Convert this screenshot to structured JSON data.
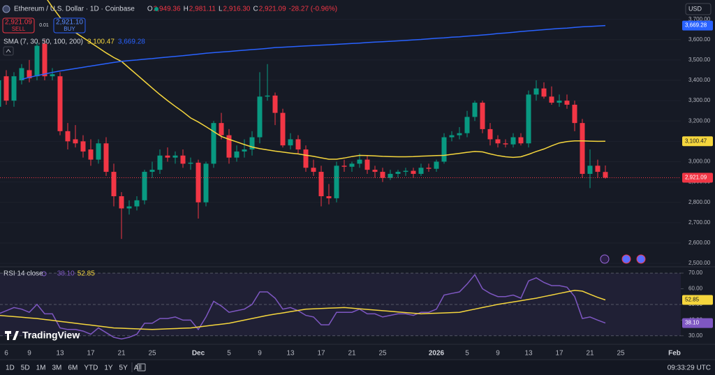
{
  "header": {
    "symbol": "Ethereum / U.S. Dollar · 1D · Coinbase",
    "ohlc": [
      {
        "key": "O",
        "value": "2,949.36"
      },
      {
        "key": "H",
        "value": "2,981.11"
      },
      {
        "key": "L",
        "value": "2,916.30"
      },
      {
        "key": "C",
        "value": "2,921.09"
      }
    ],
    "change": "-28.27 (-0.96%)"
  },
  "trade": {
    "sell_price": "2,921.09",
    "sell": "SELL",
    "spread": "0.01",
    "buy_price": "2,921.10",
    "buy": "BUY"
  },
  "currency": "USD",
  "logo": "TradingView",
  "toolbar": {
    "ranges": [
      "1D",
      "5D",
      "1M",
      "3M",
      "6M",
      "YTD",
      "1Y",
      "5Y",
      "All"
    ],
    "clock": "09:33:29 UTC"
  },
  "chart_data": [
    {
      "type": "candlestick",
      "categories": [
        null,
        "6",
        null,
        null,
        "9",
        null,
        null,
        null,
        "13",
        null,
        null,
        null,
        "17",
        null,
        null,
        null,
        "21",
        null,
        null,
        null,
        "25",
        null,
        null,
        null,
        null,
        null,
        "Dec",
        null,
        null,
        null,
        "5",
        null,
        null,
        null,
        "9",
        null,
        null,
        null,
        "13",
        null,
        null,
        null,
        "17",
        null,
        null,
        null,
        "21",
        null,
        null,
        null,
        "25",
        null,
        null,
        null,
        null,
        null,
        null,
        "2026",
        null,
        null,
        null,
        "5",
        null,
        null,
        null,
        "9",
        null,
        null,
        null,
        "13",
        null,
        null,
        null,
        "17",
        null,
        null,
        null,
        "21",
        null,
        null,
        null,
        "25",
        null,
        null,
        null,
        null,
        null,
        null,
        "Feb"
      ],
      "open": [
        3270,
        3420,
        3300,
        3400,
        3450,
        3420,
        3580,
        3420,
        3420,
        3150,
        3110,
        3100,
        3060,
        3010,
        3090,
        2950,
        2830,
        2770,
        2780,
        2810,
        2950,
        2960,
        3030,
        3020,
        3030,
        2990,
        2995,
        2800,
        2990,
        3190,
        3130,
        3020,
        3050,
        3060,
        3120,
        3320,
        3325,
        3240,
        3080,
        3110,
        3060,
        2970,
        2950,
        2830,
        2820,
        2980,
        2975,
        2990,
        3010,
        2960,
        2950,
        2920,
        2940,
        2950,
        2955,
        2940,
        2970,
        2965,
        3000,
        3120,
        3130,
        3140,
        3220,
        3290,
        3160,
        3110,
        3090,
        3085,
        3120,
        3090,
        3330,
        3360,
        3320,
        3290,
        3300,
        3280,
        3190,
        2940,
        2980,
        2949.36,
        null,
        null,
        null,
        null,
        null,
        null,
        null,
        null,
        null
      ],
      "high": [
        3420,
        3450,
        3440,
        3480,
        3500,
        3590,
        3600,
        3460,
        3440,
        3190,
        3180,
        3130,
        3110,
        3110,
        3120,
        2990,
        2850,
        2810,
        2830,
        2960,
        3000,
        3060,
        3070,
        3050,
        3060,
        3020,
        3010,
        3000,
        3200,
        3240,
        3160,
        3080,
        3110,
        3150,
        3440,
        3480,
        3340,
        3260,
        3140,
        3130,
        3080,
        3010,
        2980,
        2890,
        3000,
        3010,
        3000,
        3040,
        3030,
        2980,
        2970,
        2960,
        2960,
        2970,
        2970,
        2990,
        2990,
        3010,
        3140,
        3150,
        3170,
        3250,
        3300,
        3300,
        3190,
        3130,
        3110,
        3140,
        3140,
        3350,
        3400,
        3390,
        3370,
        3330,
        3330,
        3300,
        3210,
        3060,
        3010,
        2981.11,
        null,
        null,
        null,
        null,
        null,
        null,
        null,
        null,
        null
      ],
      "low": [
        3240,
        3280,
        3270,
        3380,
        3390,
        3400,
        3400,
        3400,
        3130,
        3060,
        3070,
        3020,
        2980,
        2990,
        2930,
        2780,
        2620,
        2740,
        2760,
        2790,
        2920,
        2940,
        3000,
        2990,
        2970,
        2960,
        2720,
        2780,
        2970,
        3110,
        2990,
        3000,
        3020,
        3030,
        3090,
        3300,
        3180,
        3070,
        3060,
        3040,
        2950,
        2930,
        2780,
        2790,
        2800,
        2950,
        2950,
        2970,
        2940,
        2920,
        2900,
        2910,
        2920,
        2930,
        2920,
        2930,
        2950,
        2950,
        2990,
        3100,
        3110,
        3120,
        3200,
        3140,
        3080,
        3070,
        3070,
        3070,
        3080,
        3070,
        3300,
        3310,
        3280,
        3270,
        3260,
        3150,
        2920,
        2870,
        2920,
        2916.3,
        null,
        null,
        null,
        null,
        null,
        null,
        null,
        null,
        null
      ],
      "close": [
        3400,
        3300,
        3420,
        3460,
        3410,
        3570,
        3420,
        3430,
        3150,
        3100,
        3090,
        3050,
        3010,
        3090,
        2950,
        2830,
        2770,
        2780,
        2810,
        2950,
        2960,
        3030,
        3020,
        3030,
        2990,
        2995,
        2800,
        2990,
        3190,
        3130,
        3020,
        3050,
        3060,
        3120,
        3320,
        3325,
        3240,
        3080,
        3110,
        3060,
        2970,
        2950,
        2830,
        2820,
        2980,
        2975,
        2990,
        3010,
        2960,
        2950,
        2920,
        2940,
        2950,
        2955,
        2940,
        2970,
        2965,
        3000,
        3120,
        3130,
        3140,
        3220,
        3290,
        3160,
        3110,
        3090,
        3085,
        3120,
        3090,
        3330,
        3360,
        3320,
        3290,
        3300,
        3280,
        3190,
        2940,
        2980,
        2950,
        2921.09,
        null,
        null,
        null,
        null,
        null,
        null,
        null,
        null,
        null
      ],
      "up_color": "#089981",
      "down_color": "#f23645",
      "last_label": "2,921.09",
      "ylim": [
        2490,
        3795
      ],
      "yticks": [
        {
          "value": 2500,
          "label": "2,500.00"
        },
        {
          "value": 2600,
          "label": "2,600.00"
        },
        {
          "value": 2700,
          "label": "2,700.00"
        },
        {
          "value": 2800,
          "label": "2,800.00"
        },
        {
          "value": 2900,
          "label": "2,900.00"
        },
        {
          "value": 3000,
          "label": "3,000.00"
        },
        {
          "value": 3100,
          "label": "3,100.00"
        },
        {
          "value": 3200,
          "label": "3,200.00"
        },
        {
          "value": 3300,
          "label": "3,300.00"
        },
        {
          "value": 3400,
          "label": "3,400.00"
        },
        {
          "value": 3500,
          "label": "3,500.00"
        },
        {
          "value": 3600,
          "label": "3,600.00"
        },
        {
          "value": 3700,
          "label": "3,700.00"
        }
      ],
      "grid": true,
      "series_title": "SMA (7, 30, 50, 100, 200)",
      "series": [
        {
          "color": "#f5d63d",
          "value_label": "3,100.47",
          "values": [
            null,
            null,
            null,
            null,
            null,
            null,
            3815,
            3760,
            3710,
            3660,
            3635,
            3610,
            3585,
            3560,
            3535,
            3512,
            3493,
            3460,
            3428,
            3395,
            3362,
            3330,
            3300,
            3272,
            3245,
            3215,
            3195,
            3172,
            3148,
            3124,
            3110,
            3097,
            3084,
            3072,
            3064,
            3058,
            3052,
            3047,
            3042,
            3038,
            3032,
            3026,
            3019,
            3012,
            3012,
            3018,
            3025,
            3031,
            3030,
            3028,
            3026,
            3025,
            3024,
            3024,
            3025,
            3027,
            3028,
            3030,
            3031,
            3036,
            3041,
            3046,
            3050,
            3048,
            3038,
            3030,
            3024,
            3021,
            3024,
            3036,
            3050,
            3062,
            3078,
            3092,
            3099,
            3102,
            3102,
            3101,
            3100,
            3100.47,
            null,
            null,
            null,
            null,
            null,
            null,
            null,
            null,
            null
          ]
        },
        {
          "color": "#2962ff",
          "value_label": "3,669.28",
          "values": [
            null,
            null,
            null,
            3405,
            3415,
            3423,
            3431,
            3439,
            3446,
            3452,
            3458,
            3464,
            3470,
            3476,
            3482,
            3488,
            3493,
            3497,
            3500,
            3504,
            3507,
            3511,
            3514,
            3518,
            3521,
            3525,
            3529,
            3533,
            3536,
            3539,
            3542,
            3545,
            3548,
            3551,
            3554,
            3557,
            3561,
            3563,
            3565,
            3567,
            3569,
            3571,
            3573,
            3575,
            3577,
            3579,
            3581,
            3583,
            3586,
            3588,
            3590,
            3592,
            3594,
            3596,
            3599,
            3601,
            3604,
            3607,
            3609,
            3612,
            3614,
            3617,
            3620,
            3623,
            3626,
            3630,
            3633,
            3636,
            3640,
            3643,
            3646,
            3649,
            3652,
            3655,
            3657,
            3660,
            3663,
            3665,
            3667,
            3669.28,
            null,
            null,
            null,
            null,
            null,
            null,
            null,
            null,
            null
          ]
        }
      ]
    },
    {
      "type": "line",
      "title": "RSI 14 close",
      "ylim": [
        25.9,
        73.6
      ],
      "yticks": [
        {
          "value": 30,
          "label": "30.00"
        },
        {
          "value": 40,
          "label": "40.00"
        },
        {
          "value": 50,
          "label": "50.00"
        },
        {
          "value": 60,
          "label": "60.00"
        },
        {
          "value": 70,
          "label": "70.00"
        }
      ],
      "levels": [
        30,
        50,
        70
      ],
      "band_color": "#7e57c2",
      "series": [
        {
          "color": "#7e57c2",
          "value_label": "38.10",
          "values": [
            44,
            46,
            48,
            47,
            45,
            50,
            44,
            44,
            35,
            34,
            34,
            33,
            31,
            35,
            32,
            29,
            28,
            29,
            31,
            38,
            38,
            41,
            41,
            42,
            40,
            40,
            34,
            42,
            52,
            49,
            45,
            46,
            47,
            50,
            58,
            58,
            54,
            47,
            48,
            46,
            43,
            42,
            37,
            37,
            45,
            45,
            45,
            47,
            44,
            44,
            42,
            43,
            44,
            44,
            43,
            45,
            45,
            47,
            56,
            57,
            58,
            63,
            69,
            60,
            57,
            55,
            55,
            56,
            54,
            65,
            67,
            64,
            62,
            62,
            61,
            55,
            41,
            42,
            40,
            38.1,
            null,
            null,
            null,
            null,
            null,
            null,
            null,
            null,
            null
          ]
        },
        {
          "color": "#f5d63d",
          "value_label": "52.85",
          "values": [
            43,
            42.6,
            42.2,
            41.8,
            41.4,
            41,
            40.4,
            39.8,
            39.2,
            38.6,
            38,
            37.4,
            36.8,
            36.2,
            35.6,
            35,
            34.8,
            34.6,
            34.4,
            34.2,
            34,
            34.2,
            34.4,
            34.6,
            34.8,
            35,
            35.6,
            36.2,
            36.8,
            37.4,
            38,
            39,
            40,
            41,
            42,
            43,
            43.8,
            44.6,
            45.4,
            46.2,
            47,
            47.2,
            47.4,
            47.6,
            47.8,
            48,
            47.6,
            47.2,
            46.8,
            46.4,
            46,
            45.6,
            45.2,
            44.8,
            44.4,
            44,
            44.2,
            44.4,
            44.6,
            44.8,
            45,
            46,
            47,
            48,
            49,
            50,
            50.8,
            51.6,
            52.4,
            53.2,
            54,
            55,
            56,
            57,
            58,
            59,
            58.5,
            56.5,
            54.5,
            52.85,
            null,
            null,
            null,
            null,
            null,
            null,
            null,
            null,
            null
          ]
        }
      ]
    }
  ]
}
